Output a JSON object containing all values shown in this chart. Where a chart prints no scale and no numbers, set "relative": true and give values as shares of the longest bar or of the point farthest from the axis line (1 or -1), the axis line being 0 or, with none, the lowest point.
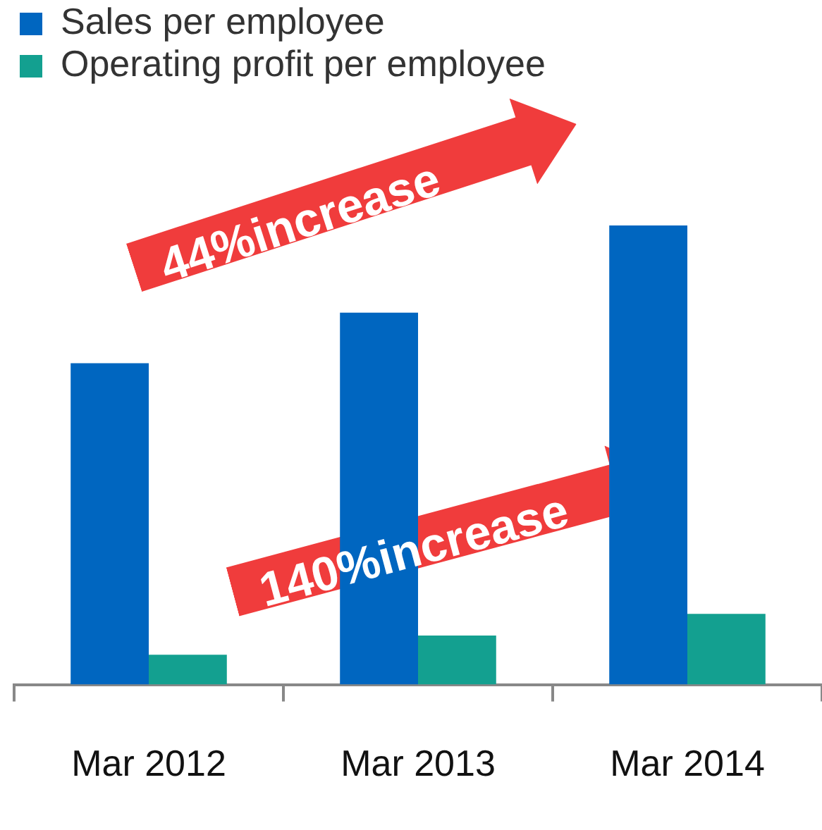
{
  "chart_data": {
    "type": "bar",
    "relative": true,
    "categories": [
      "Mar 2012",
      "Mar 2013",
      "Mar 2014"
    ],
    "series": [
      {
        "name": "Sales per employee",
        "color": "#0066c0",
        "values": [
          0.7,
          0.81,
          1
        ]
      },
      {
        "name": "Operating profit per employee",
        "color": "#13a090",
        "values": [
          0.065,
          0.107,
          0.154
        ]
      }
    ],
    "legend": "top left",
    "grid": false,
    "annotations": [
      "44%increase",
      "140%increase"
    ]
  }
}
